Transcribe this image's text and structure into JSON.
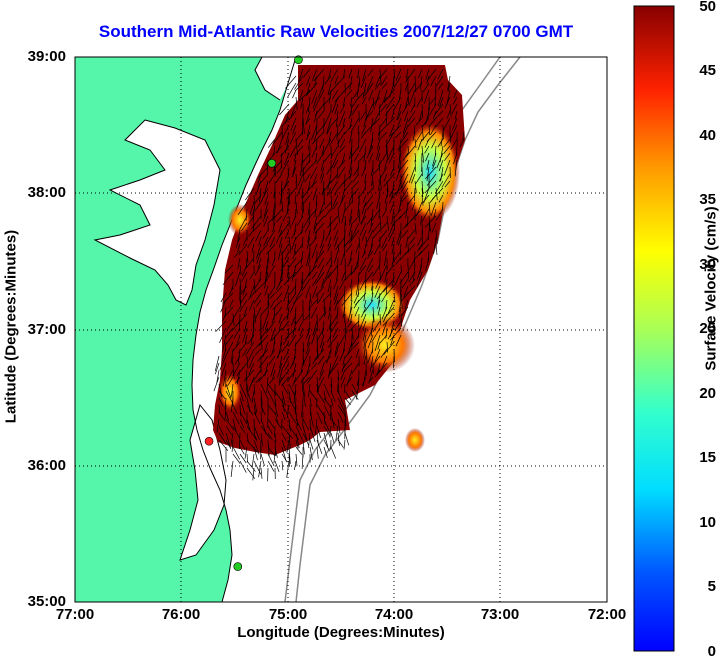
{
  "title": "Southern Mid-Atlantic Raw Velocities 2007/12/27 0700 GMT",
  "x_axis": {
    "label": "Longitude (Degrees:Minutes)",
    "ticks": [
      "77:00",
      "76:00",
      "75:00",
      "74:00",
      "73:00",
      "72:00"
    ]
  },
  "y_axis": {
    "label": "Latitude (Degrees:Minutes)",
    "ticks": [
      "39:00",
      "38:00",
      "37:00",
      "36:00",
      "35:00"
    ]
  },
  "colorbar": {
    "label": "Surface Velocity (cm/s)",
    "ticks": [
      "50",
      "45",
      "40",
      "35",
      "30",
      "25",
      "20",
      "15",
      "10",
      "5",
      "0"
    ],
    "range": [
      0,
      50
    ],
    "colormap": "jet"
  },
  "map": {
    "lon_range": [
      -77,
      -72
    ],
    "lat_range": [
      35,
      39
    ],
    "grid": true,
    "land_color": "#55f5aa",
    "water_color": "#ffffff",
    "coastline_color": "#000000",
    "bathymetry_color": "#888888",
    "stations": [
      {
        "lon": -74.9,
        "lat": 38.98,
        "color": "#22cc22"
      },
      {
        "lon": -75.15,
        "lat": 38.22,
        "color": "#22cc22"
      },
      {
        "lon": -75.74,
        "lat": 36.18,
        "color": "#ff2222"
      },
      {
        "lon": -75.47,
        "lat": 35.26,
        "color": "#22cc22"
      }
    ]
  }
}
